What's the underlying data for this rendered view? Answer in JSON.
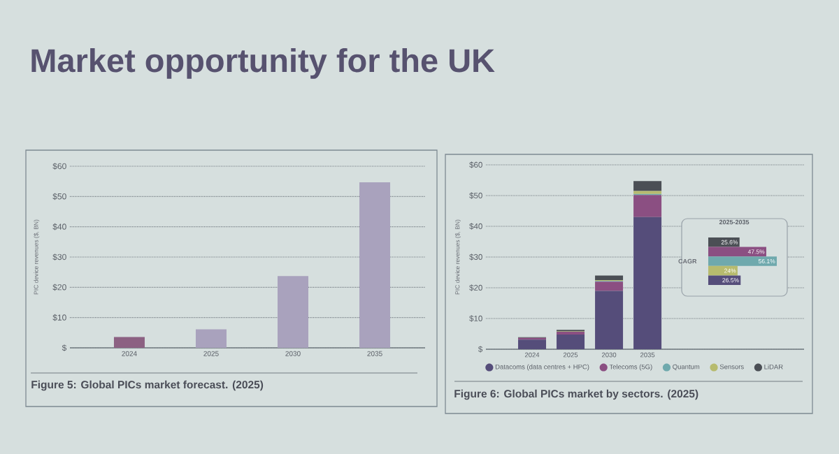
{
  "chart_data": [
    {
      "type": "bar",
      "title": "Market opportunity for the UK",
      "ylabel": "PIC device revenues ($, BN)",
      "categories": [
        "2024",
        "2025",
        "2030",
        "2035"
      ],
      "values": [
        3.6,
        6.1,
        23.7,
        54.7
      ],
      "colors": [
        "#8c6182",
        "#a9a2bd",
        "#a9a2bd",
        "#a9a2bd"
      ],
      "ylim": [
        0,
        60
      ],
      "yticks": [
        {
          "value": 0,
          "label": "$"
        },
        {
          "value": 10,
          "label": "$10"
        },
        {
          "value": 20,
          "label": "$20"
        },
        {
          "value": 30,
          "label": "$30"
        },
        {
          "value": 40,
          "label": "$40"
        },
        {
          "value": 50,
          "label": "$50"
        },
        {
          "value": 60,
          "label": "$60"
        }
      ],
      "grid": "y",
      "annotations": [
        "Figure 5: Global PICs market forecast. (2025)"
      ]
    },
    {
      "type": "bar",
      "stacked": true,
      "ylabel": "PIC device revenues ($, BN)",
      "categories": [
        "2024",
        "2025",
        "2030",
        "2035"
      ],
      "series": [
        {
          "name": "Datacoms (data centres + HPC)",
          "color": "#554d7a",
          "values": [
            3.1,
            4.8,
            19,
            43
          ]
        },
        {
          "name": "Telecoms (5G)",
          "color": "#8b4f82",
          "values": [
            0.6,
            0.9,
            3,
            7.2
          ]
        },
        {
          "name": "Quantum",
          "color": "#6fa9ad",
          "values": [
            0,
            0,
            0.2,
            0.3
          ]
        },
        {
          "name": "Sensors",
          "color": "#b7bb6e",
          "values": [
            0,
            0.1,
            0.3,
            1
          ]
        },
        {
          "name": "LiDAR",
          "color": "#4b4f55",
          "values": [
            0.2,
            0.5,
            1.5,
            3.2
          ]
        }
      ],
      "ylim": [
        0,
        60
      ],
      "yticks": [
        {
          "value": 0,
          "label": "$"
        },
        {
          "value": 10,
          "label": "$10"
        },
        {
          "value": 20,
          "label": "$20"
        },
        {
          "value": 30,
          "label": "$30"
        },
        {
          "value": 40,
          "label": "$40"
        },
        {
          "value": 50,
          "label": "$50"
        },
        {
          "value": 60,
          "label": "$60"
        }
      ],
      "grid": "y",
      "legend": "bottom",
      "annotations": [
        "Figure 6: Global PICs market by sectors. (2025)"
      ]
    },
    {
      "type": "bar",
      "orientation": "horizontal",
      "title": "2025-2035",
      "ylabel": "CAGR",
      "categories": [
        null,
        null,
        null,
        null,
        null
      ],
      "values": [
        25.6,
        47.5,
        56.1,
        24,
        26.5
      ],
      "value_labels": [
        "25.6%",
        "47.5%",
        "56.1%",
        "24%",
        "26.5%"
      ],
      "colors": [
        "#4b4f55",
        "#8b4f82",
        "#6fa9ad",
        "#b7bb6e",
        "#554d7a"
      ]
    }
  ]
}
